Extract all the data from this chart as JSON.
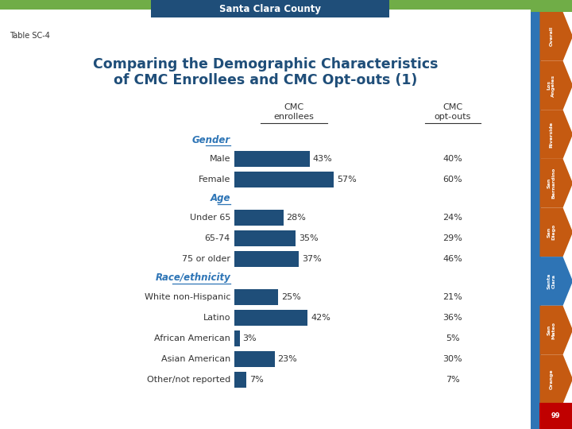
{
  "title_line1": "Comparing the Demographic Characteristics",
  "title_line2": "of CMC Enrollees and CMC Opt-outs (1)",
  "table_label": "Table SC-4",
  "header_title": "Santa Clara County",
  "categories": [
    {
      "label": "Gender",
      "is_header": true,
      "value": null,
      "opt_out": null
    },
    {
      "label": "Male",
      "is_header": false,
      "value": 43,
      "opt_out": "40%"
    },
    {
      "label": "Female",
      "is_header": false,
      "value": 57,
      "opt_out": "60%"
    },
    {
      "label": "Age",
      "is_header": true,
      "value": null,
      "opt_out": null
    },
    {
      "label": "Under 65",
      "is_header": false,
      "value": 28,
      "opt_out": "24%"
    },
    {
      "label": "65-74",
      "is_header": false,
      "value": 35,
      "opt_out": "29%"
    },
    {
      "label": "75 or older",
      "is_header": false,
      "value": 37,
      "opt_out": "46%"
    },
    {
      "label": "Race/ethnicity",
      "is_header": true,
      "value": null,
      "opt_out": null
    },
    {
      "label": "White non-Hispanic",
      "is_header": false,
      "value": 25,
      "opt_out": "21%"
    },
    {
      "label": "Latino",
      "is_header": false,
      "value": 42,
      "opt_out": "36%"
    },
    {
      "label": "African American",
      "is_header": false,
      "value": 3,
      "opt_out": "5%"
    },
    {
      "label": "Asian American",
      "is_header": false,
      "value": 23,
      "opt_out": "30%"
    },
    {
      "label": "Other/not reported",
      "is_header": false,
      "value": 7,
      "opt_out": "7%"
    }
  ],
  "bar_color": "#1F4E79",
  "category_header_color": "#2E75B6",
  "title_color": "#1F4E79",
  "bg_color": "#FFFFFF",
  "top_bar_color": "#1F4E79",
  "top_bar_text_color": "#FFFFFF",
  "green_color": "#70AD47",
  "sidebar_labels": [
    "Overall",
    "Los\nAngeles",
    "Riverside",
    "San\nBernardino",
    "San\nDiego",
    "Santa\nClara",
    "San\nMateo",
    "Orange"
  ],
  "sidebar_colors": [
    "#C55A11",
    "#C55A11",
    "#C55A11",
    "#C55A11",
    "#C55A11",
    "#2E74B5",
    "#C55A11",
    "#C55A11"
  ],
  "sidebar_blue_strip": "#2E74B5",
  "sidebar_red": "#C00000"
}
